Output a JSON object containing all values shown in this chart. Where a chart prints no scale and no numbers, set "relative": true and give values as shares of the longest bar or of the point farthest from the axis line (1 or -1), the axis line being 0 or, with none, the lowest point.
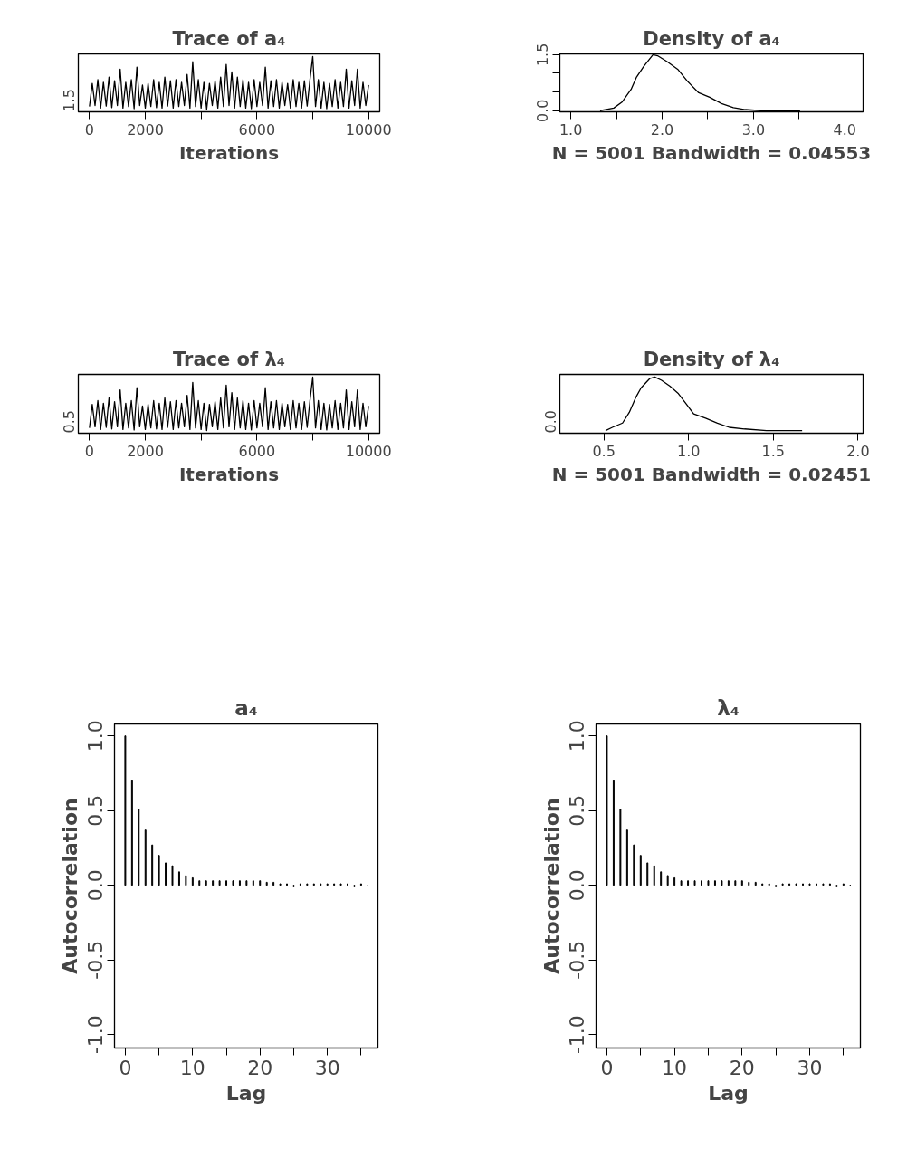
{
  "chart_data": [
    {
      "type": "line",
      "title": "Trace of a₄",
      "xlabel": "Iterations",
      "relative": true,
      "annotations": [
        "1.5"
      ],
      "x": [
        0,
        100,
        200,
        300,
        400,
        500,
        600,
        700,
        800,
        900,
        1000,
        1100,
        1200,
        1300,
        1400,
        1500,
        1600,
        1700,
        1800,
        1900,
        2000,
        2100,
        2200,
        2300,
        2400,
        2500,
        2600,
        2700,
        2800,
        2900,
        3000,
        3100,
        3200,
        3300,
        3400,
        3500,
        3600,
        3700,
        3800,
        3900,
        4000,
        4100,
        4200,
        4300,
        4400,
        4500,
        4600,
        4700,
        4800,
        4900,
        5000,
        5100,
        5200,
        5300,
        5400,
        5500,
        5600,
        5700,
        5800,
        5900,
        6000,
        6100,
        6200,
        6300,
        6400,
        6500,
        6600,
        6700,
        6800,
        6900,
        7000,
        7100,
        7200,
        7300,
        7400,
        7500,
        7600,
        7700,
        7800,
        7900,
        8000,
        8100,
        8200,
        8300,
        8400,
        8500,
        8600,
        8700,
        8800,
        8900,
        9000,
        9100,
        9200,
        9300,
        9400,
        9500,
        9600,
        9700,
        9800,
        9900,
        10000
      ],
      "series": [
        {
          "color": "#000000",
          "values": [
            0.05,
            0.49,
            0.07,
            0.56,
            0.02,
            0.51,
            0.06,
            0.61,
            0.03,
            0.54,
            0.07,
            0.76,
            0.02,
            0.51,
            0.05,
            0.56,
            0.01,
            0.8,
            0.07,
            0.46,
            0.02,
            0.49,
            0.05,
            0.56,
            0.03,
            0.51,
            0.02,
            0.61,
            0.06,
            0.54,
            0.02,
            0.56,
            0.05,
            0.51,
            0.07,
            0.66,
            0.02,
            0.9,
            0.05,
            0.56,
            0.02,
            0.51,
            0,
            0.49,
            0.07,
            0.54,
            0.02,
            0.61,
            0.05,
            0.85,
            0.07,
            0.71,
            0.02,
            0.61,
            0.05,
            0.56,
            0.02,
            0.51,
            0.01,
            0.56,
            0.05,
            0.51,
            0.07,
            0.8,
            0.02,
            0.54,
            0.05,
            0.56,
            0.02,
            0.51,
            0.07,
            0.49,
            0.02,
            0.56,
            0.05,
            0.51,
            0.02,
            0.54,
            0.06,
            0.56,
            1,
            0.05,
            0.56,
            0.02,
            0.51,
            0.01,
            0.49,
            0.05,
            0.56,
            0.02,
            0.51,
            0.05,
            0.76,
            0.02,
            0.54,
            0.07,
            0.76,
            0.02,
            0.51,
            0.07,
            0.46
          ]
        }
      ],
      "xlim": [
        -400,
        10400
      ],
      "xticks": [
        0,
        2000,
        {
          "value": 4000,
          "label": null
        },
        6000,
        {
          "value": 8000,
          "label": null
        },
        10000
      ],
      "grid": false,
      "line_style": "solid"
    },
    {
      "type": "line",
      "title": "Density of a₄",
      "xlabel": "N = 5001 Bandwidth = 0.04553",
      "x": [
        1.32,
        1.47,
        1.56,
        1.66,
        1.72,
        1.8,
        1.9,
        1.95,
        2.05,
        2.17,
        2.28,
        2.4,
        2.52,
        2.65,
        2.78,
        2.91,
        3.08,
        3.51
      ],
      "series": [
        {
          "color": "#000000",
          "values": [
            0,
            0.07,
            0.23,
            0.57,
            0.9,
            1.19,
            1.5,
            1.47,
            1.32,
            1.11,
            0.78,
            0.48,
            0.36,
            0.19,
            0.08,
            0.03,
            0,
            0
          ]
        }
      ],
      "xlim": [
        0.88,
        4.2
      ],
      "xticks": [
        {
          "value": 1,
          "label": "1.0"
        },
        {
          "value": 1.5,
          "label": null
        },
        {
          "value": 2,
          "label": "2.0"
        },
        {
          "value": 2.5,
          "label": null
        },
        {
          "value": 3,
          "label": "3.0"
        },
        {
          "value": 3.5,
          "label": null
        },
        {
          "value": 4,
          "label": "4.0"
        }
      ],
      "ylim": [
        -0.03,
        1.52
      ],
      "yticks": [
        {
          "value": 0,
          "label": "0.0"
        },
        {
          "value": 0.5,
          "label": null
        },
        {
          "value": 1,
          "label": null
        },
        1.5
      ],
      "grid": false,
      "line_style": "solid"
    },
    {
      "type": "line",
      "title": "Trace of λ₄",
      "xlabel": "Iterations",
      "relative": true,
      "annotations": [
        "0.5"
      ],
      "x": [
        0,
        100,
        200,
        300,
        400,
        500,
        600,
        700,
        800,
        900,
        1000,
        1100,
        1200,
        1300,
        1400,
        1500,
        1600,
        1700,
        1800,
        1900,
        2000,
        2100,
        2200,
        2300,
        2400,
        2500,
        2600,
        2700,
        2800,
        2900,
        3000,
        3100,
        3200,
        3300,
        3400,
        3500,
        3600,
        3700,
        3800,
        3900,
        4000,
        4100,
        4200,
        4300,
        4400,
        4500,
        4600,
        4700,
        4800,
        4900,
        5000,
        5100,
        5200,
        5300,
        5400,
        5500,
        5600,
        5700,
        5800,
        5900,
        6000,
        6100,
        6200,
        6300,
        6400,
        6500,
        6600,
        6700,
        6800,
        6900,
        7000,
        7100,
        7200,
        7300,
        7400,
        7500,
        7600,
        7700,
        7800,
        7900,
        8000,
        8100,
        8200,
        8300,
        8400,
        8500,
        8600,
        8700,
        8800,
        8900,
        9000,
        9100,
        9200,
        9300,
        9400,
        9500,
        9600,
        9700,
        9800,
        9900,
        10000
      ],
      "series": [
        {
          "color": "#000000",
          "values": [
            0.05,
            0.49,
            0.07,
            0.56,
            0.02,
            0.51,
            0.06,
            0.61,
            0.03,
            0.54,
            0.07,
            0.76,
            0.02,
            0.51,
            0.05,
            0.56,
            0.01,
            0.8,
            0.07,
            0.46,
            0.02,
            0.49,
            0.05,
            0.56,
            0.03,
            0.51,
            0.02,
            0.61,
            0.06,
            0.54,
            0.02,
            0.56,
            0.05,
            0.51,
            0.07,
            0.66,
            0.02,
            0.9,
            0.05,
            0.56,
            0.02,
            0.51,
            0,
            0.49,
            0.07,
            0.54,
            0.02,
            0.61,
            0.05,
            0.85,
            0.07,
            0.71,
            0.02,
            0.61,
            0.05,
            0.56,
            0.02,
            0.51,
            0.01,
            0.56,
            0.05,
            0.51,
            0.07,
            0.8,
            0.02,
            0.54,
            0.05,
            0.56,
            0.02,
            0.51,
            0.07,
            0.49,
            0.02,
            0.56,
            0.05,
            0.51,
            0.02,
            0.54,
            0.06,
            0.56,
            1,
            0.05,
            0.56,
            0.02,
            0.51,
            0.01,
            0.49,
            0.05,
            0.56,
            0.02,
            0.51,
            0.05,
            0.76,
            0.02,
            0.54,
            0.07,
            0.76,
            0.02,
            0.51,
            0.07,
            0.46
          ]
        }
      ],
      "xlim": [
        -400,
        10400
      ],
      "xticks": [
        0,
        2000,
        {
          "value": 4000,
          "label": null
        },
        6000,
        {
          "value": 8000,
          "label": null
        },
        10000
      ],
      "grid": false,
      "line_style": "solid"
    },
    {
      "type": "line",
      "title": "Density of λ₄",
      "xlabel": "N = 5001 Bandwidth = 0.02451",
      "relative": true,
      "annotations": [
        "0.0"
      ],
      "x": [
        0.51,
        0.55,
        0.61,
        0.65,
        0.69,
        0.72,
        0.77,
        0.8,
        0.84,
        0.89,
        0.94,
        0.99,
        1.03,
        1.1,
        1.17,
        1.24,
        1.33,
        1.46,
        1.67
      ],
      "series": [
        {
          "color": "#000000",
          "values": [
            0,
            0.06,
            0.14,
            0.34,
            0.63,
            0.8,
            0.97,
            1,
            0.94,
            0.83,
            0.69,
            0.48,
            0.31,
            0.23,
            0.14,
            0.06,
            0.03,
            0,
            0
          ]
        }
      ],
      "xlim": [
        0.24,
        2.03
      ],
      "xticks": [
        0.5,
        {
          "value": 1,
          "label": "1.0"
        },
        1.5,
        {
          "value": 2,
          "label": "2.0"
        }
      ],
      "grid": false,
      "line_style": "solid"
    },
    {
      "type": "bar",
      "title": "a₄",
      "xlabel": "Lag",
      "ylabel": "Autocorrelation",
      "x": [
        0,
        1,
        2,
        3,
        4,
        5,
        6,
        7,
        8,
        9,
        10,
        11,
        12,
        13,
        14,
        15,
        16,
        17,
        18,
        19,
        20,
        21,
        22,
        23,
        24,
        25,
        26,
        27,
        28,
        29,
        30,
        31,
        32,
        33,
        34,
        35,
        36
      ],
      "series": [
        {
          "color": "#000000",
          "values": [
            1.0,
            0.7,
            0.51,
            0.37,
            0.27,
            0.2,
            0.15,
            0.13,
            0.09,
            0.065,
            0.05,
            0.03,
            0.03,
            0.03,
            0.03,
            0.03,
            0.03,
            0.03,
            0.03,
            0.03,
            0.03,
            0.02,
            0.02,
            0.01,
            0.01,
            -0.01,
            0.01,
            0.01,
            0.01,
            0.01,
            0.01,
            0.01,
            0.01,
            0.01,
            -0.01,
            0.01,
            0.0
          ]
        }
      ],
      "xlim": [
        -1.6,
        37.5
      ],
      "xticks": [
        0,
        {
          "value": 5,
          "label": null
        },
        10,
        {
          "value": 15,
          "label": null
        },
        20,
        {
          "value": 25,
          "label": null
        },
        30,
        {
          "value": 35,
          "label": null
        }
      ],
      "ylim": [
        -1.09,
        1.08
      ],
      "yticks": [
        {
          "value": -1,
          "label": "-1.0"
        },
        -0.5,
        {
          "value": 0,
          "label": "0.0"
        },
        0.5,
        {
          "value": 1,
          "label": "1.0"
        }
      ],
      "grid": false
    },
    {
      "type": "bar",
      "title": "λ₄",
      "xlabel": "Lag",
      "ylabel": "Autocorrelation",
      "x": [
        0,
        1,
        2,
        3,
        4,
        5,
        6,
        7,
        8,
        9,
        10,
        11,
        12,
        13,
        14,
        15,
        16,
        17,
        18,
        19,
        20,
        21,
        22,
        23,
        24,
        25,
        26,
        27,
        28,
        29,
        30,
        31,
        32,
        33,
        34,
        35,
        36
      ],
      "series": [
        {
          "color": "#000000",
          "values": [
            1.0,
            0.7,
            0.51,
            0.37,
            0.27,
            0.2,
            0.15,
            0.13,
            0.09,
            0.065,
            0.05,
            0.03,
            0.03,
            0.03,
            0.03,
            0.03,
            0.03,
            0.03,
            0.03,
            0.03,
            0.03,
            0.02,
            0.02,
            0.01,
            0.01,
            -0.01,
            0.01,
            0.01,
            0.01,
            0.01,
            0.01,
            0.01,
            0.01,
            0.01,
            -0.01,
            0.01,
            0.0
          ]
        }
      ],
      "xlim": [
        -1.6,
        37.5
      ],
      "xticks": [
        0,
        {
          "value": 5,
          "label": null
        },
        10,
        {
          "value": 15,
          "label": null
        },
        20,
        {
          "value": 25,
          "label": null
        },
        30,
        {
          "value": 35,
          "label": null
        }
      ],
      "ylim": [
        -1.09,
        1.08
      ],
      "yticks": [
        {
          "value": -1,
          "label": "-1.0"
        },
        -0.5,
        {
          "value": 0,
          "label": "0.0"
        },
        0.5,
        {
          "value": 1,
          "label": "1.0"
        }
      ],
      "grid": false
    }
  ]
}
